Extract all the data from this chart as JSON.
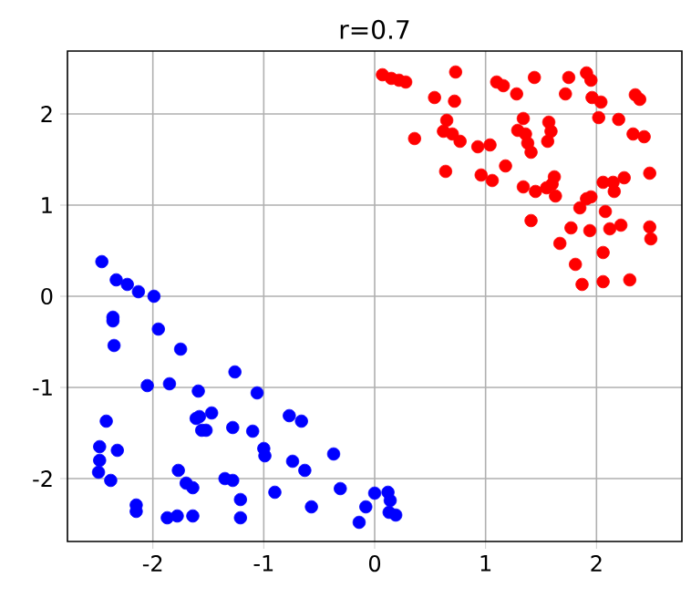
{
  "chart_data": {
    "type": "scatter",
    "title": "r=0.7",
    "series": [
      {
        "color": "#ff0000",
        "x": [
          0.07,
          0.15,
          0.22,
          0.28,
          0.73,
          0.54,
          0.72,
          1.1,
          1.16,
          1.28,
          1.44,
          1.75,
          1.91,
          1.95,
          1.72,
          1.96,
          2.04,
          2.35,
          2.39,
          2.02,
          2.2,
          2.33,
          2.43,
          0.36,
          0.65,
          0.62,
          0.7,
          0.77,
          0.93,
          1.04,
          0.64,
          0.96,
          1.06,
          1.18,
          1.34,
          1.29,
          1.36,
          1.38,
          1.41,
          1.57,
          1.59,
          1.56,
          1.34,
          1.45,
          1.55,
          1.62,
          1.63,
          1.6,
          1.85,
          1.91,
          1.95,
          2.08,
          2.06,
          2.15,
          2.25,
          2.16,
          2.48,
          1.41,
          1.77,
          1.94,
          2.12,
          2.22,
          2.48,
          2.49,
          1.67,
          2.06,
          1.81,
          1.87,
          2.06,
          2.3
        ],
        "values": [
          2.43,
          2.39,
          2.37,
          2.35,
          2.46,
          2.18,
          2.14,
          2.35,
          2.31,
          2.22,
          2.4,
          2.4,
          2.45,
          2.37,
          2.22,
          2.18,
          2.13,
          2.21,
          2.16,
          1.96,
          1.94,
          1.78,
          1.75,
          1.73,
          1.93,
          1.81,
          1.78,
          1.7,
          1.64,
          1.66,
          1.37,
          1.33,
          1.27,
          1.43,
          1.95,
          1.82,
          1.78,
          1.68,
          1.58,
          1.91,
          1.81,
          1.7,
          1.2,
          1.15,
          1.19,
          1.31,
          1.1,
          1.23,
          0.97,
          1.07,
          1.09,
          0.93,
          1.25,
          1.25,
          1.3,
          1.15,
          1.35,
          0.83,
          0.75,
          0.72,
          0.74,
          0.78,
          0.76,
          0.63,
          0.58,
          0.48,
          0.35,
          0.13,
          0.16,
          0.18
        ]
      },
      {
        "color": "#0000ff",
        "x": [
          -2.46,
          -2.33,
          -2.23,
          -2.13,
          -1.99,
          -2.36,
          -2.36,
          -2.35,
          -1.95,
          -1.75,
          -2.05,
          -1.85,
          -1.26,
          -1.59,
          -1.06,
          -2.42,
          -1.61,
          -1.58,
          -1.47,
          -1.56,
          -1.52,
          -1.28,
          -1.1,
          -1.0,
          -0.99,
          -0.77,
          -0.66,
          -2.48,
          -2.48,
          -2.49,
          -2.32,
          -2.38,
          -1.77,
          -1.7,
          -1.64,
          -1.35,
          -1.28,
          -1.21,
          -0.9,
          -0.74,
          -0.63,
          -0.37,
          -0.31,
          -0.57,
          -0.08,
          -0.14,
          0.0,
          0.12,
          0.14,
          0.13,
          0.19,
          -2.15,
          -2.15,
          -1.87,
          -1.78,
          -1.64,
          -1.21
        ],
        "values": [
          0.38,
          0.18,
          0.13,
          0.05,
          0.0,
          -0.23,
          -0.27,
          -0.54,
          -0.36,
          -0.58,
          -0.98,
          -0.96,
          -0.83,
          -1.04,
          -1.06,
          -1.37,
          -1.34,
          -1.32,
          -1.28,
          -1.47,
          -1.47,
          -1.44,
          -1.48,
          -1.67,
          -1.75,
          -1.31,
          -1.37,
          -1.65,
          -1.8,
          -1.93,
          -1.69,
          -2.02,
          -1.91,
          -2.05,
          -2.1,
          -2.0,
          -2.02,
          -2.23,
          -2.15,
          -1.81,
          -1.91,
          -1.73,
          -2.11,
          -2.31,
          -2.31,
          -2.48,
          -2.16,
          -2.15,
          -2.24,
          -2.37,
          -2.4,
          -2.29,
          -2.36,
          -2.43,
          -2.41,
          -2.41,
          -2.43
        ]
      }
    ],
    "xlim": [
      -2.77,
      2.77
    ],
    "ylim": [
      -2.69,
      2.69
    ],
    "xticks": [
      -2,
      -1,
      0,
      1,
      2
    ],
    "yticks": [
      -2,
      -1,
      0,
      1,
      2
    ],
    "grid": true,
    "marker": "circle"
  }
}
